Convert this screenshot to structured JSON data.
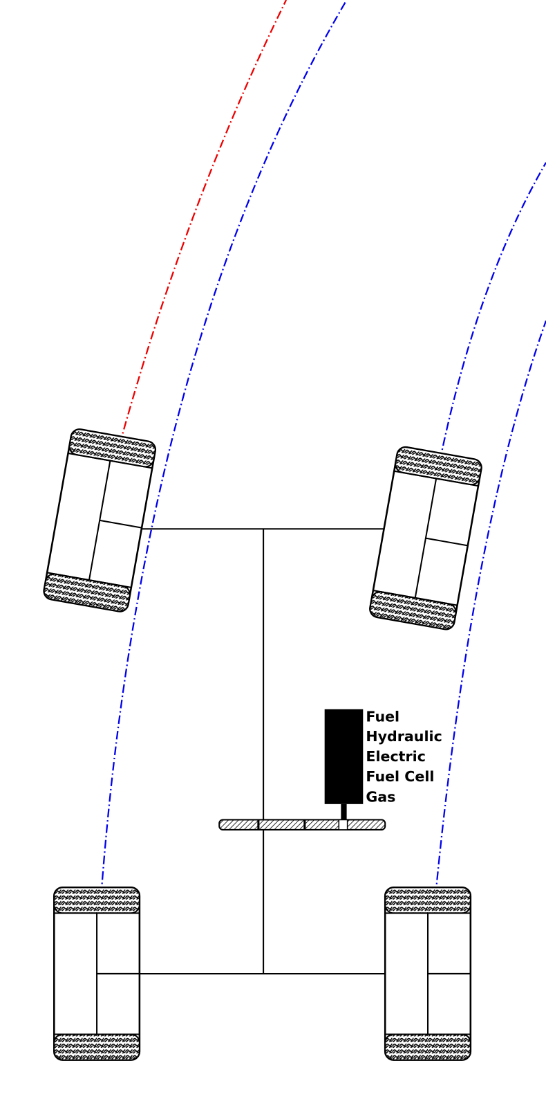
{
  "actuator": {
    "labels": [
      "Fuel",
      "Hydraulic",
      "Electric",
      "Fuel Cell",
      "Gas"
    ]
  }
}
